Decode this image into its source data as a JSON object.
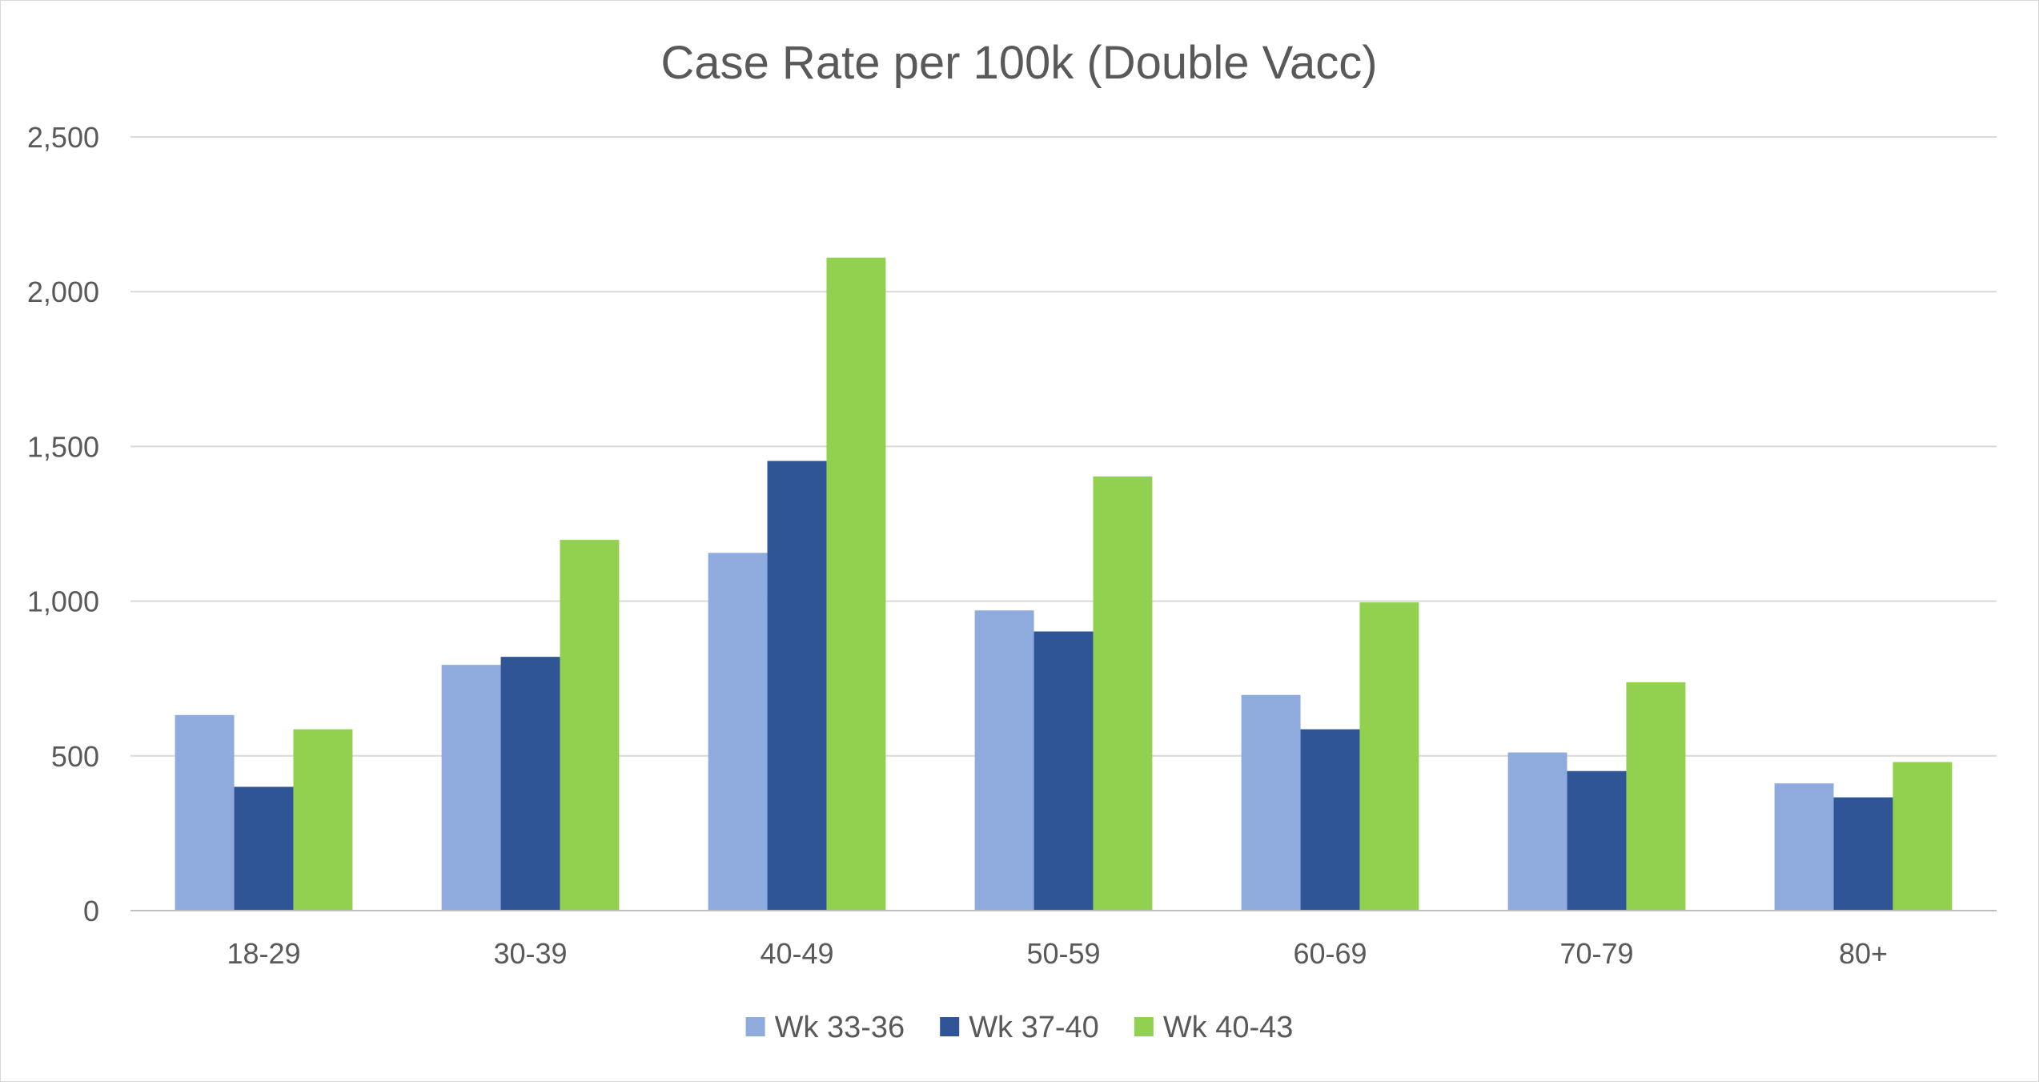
{
  "chart_data": {
    "type": "bar",
    "title": "Case Rate per 100k (Double Vacc)",
    "categories": [
      "18-29",
      "30-39",
      "40-49",
      "50-59",
      "60-69",
      "70-79",
      "80+"
    ],
    "series": [
      {
        "name": "Wk 33-36",
        "color": "#8faadc",
        "values": [
          632,
          794,
          1156,
          970,
          697,
          511,
          411
        ]
      },
      {
        "name": "Wk 37-40",
        "color": "#2f5597",
        "values": [
          400,
          820,
          1453,
          902,
          586,
          451,
          366
        ]
      },
      {
        "name": "Wk 40-43",
        "color": "#92d050",
        "values": [
          586,
          1198,
          2110,
          1403,
          996,
          738,
          480
        ]
      }
    ],
    "ylim": [
      0,
      2500
    ],
    "yticks": [
      0,
      500,
      1000,
      1500,
      2000,
      2500
    ],
    "ytick_labels": [
      "0",
      "500",
      "1,000",
      "1,500",
      "2,000",
      "2,500"
    ],
    "grid": true,
    "legend_position": "bottom",
    "xlabel": "",
    "ylabel": ""
  }
}
